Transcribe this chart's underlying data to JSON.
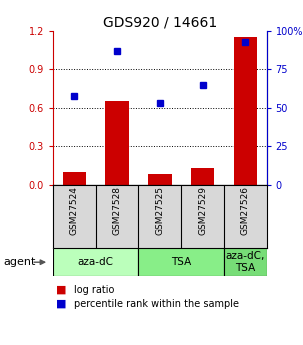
{
  "title": "GDS920 / 14661",
  "samples": [
    "GSM27524",
    "GSM27528",
    "GSM27525",
    "GSM27529",
    "GSM27526"
  ],
  "log_ratio": [
    0.1,
    0.65,
    0.08,
    0.13,
    1.15
  ],
  "percentile_rank": [
    58,
    87,
    53,
    65,
    93
  ],
  "ylim_left": [
    0,
    1.2
  ],
  "ylim_right": [
    0,
    100
  ],
  "yticks_left": [
    0,
    0.3,
    0.6,
    0.9,
    1.2
  ],
  "yticks_right": [
    0,
    25,
    50,
    75,
    100
  ],
  "bar_color": "#cc0000",
  "point_color": "#0000cc",
  "groups": [
    {
      "label": "aza-dC",
      "start": 0,
      "end": 2,
      "color": "#bbffbb"
    },
    {
      "label": "TSA",
      "start": 2,
      "end": 4,
      "color": "#88ee88"
    },
    {
      "label": "aza-dC,\nTSA",
      "start": 4,
      "end": 5,
      "color": "#77dd77"
    }
  ],
  "agent_label": "agent",
  "legend_red_label": "log ratio",
  "legend_blue_label": "percentile rank within the sample",
  "sample_bg_color": "#d8d8d8",
  "bar_width": 0.55,
  "title_fontsize": 10,
  "tick_fontsize": 7,
  "sample_fontsize": 6.5,
  "group_fontsize": 7.5,
  "legend_fontsize": 7,
  "agent_fontsize": 8
}
